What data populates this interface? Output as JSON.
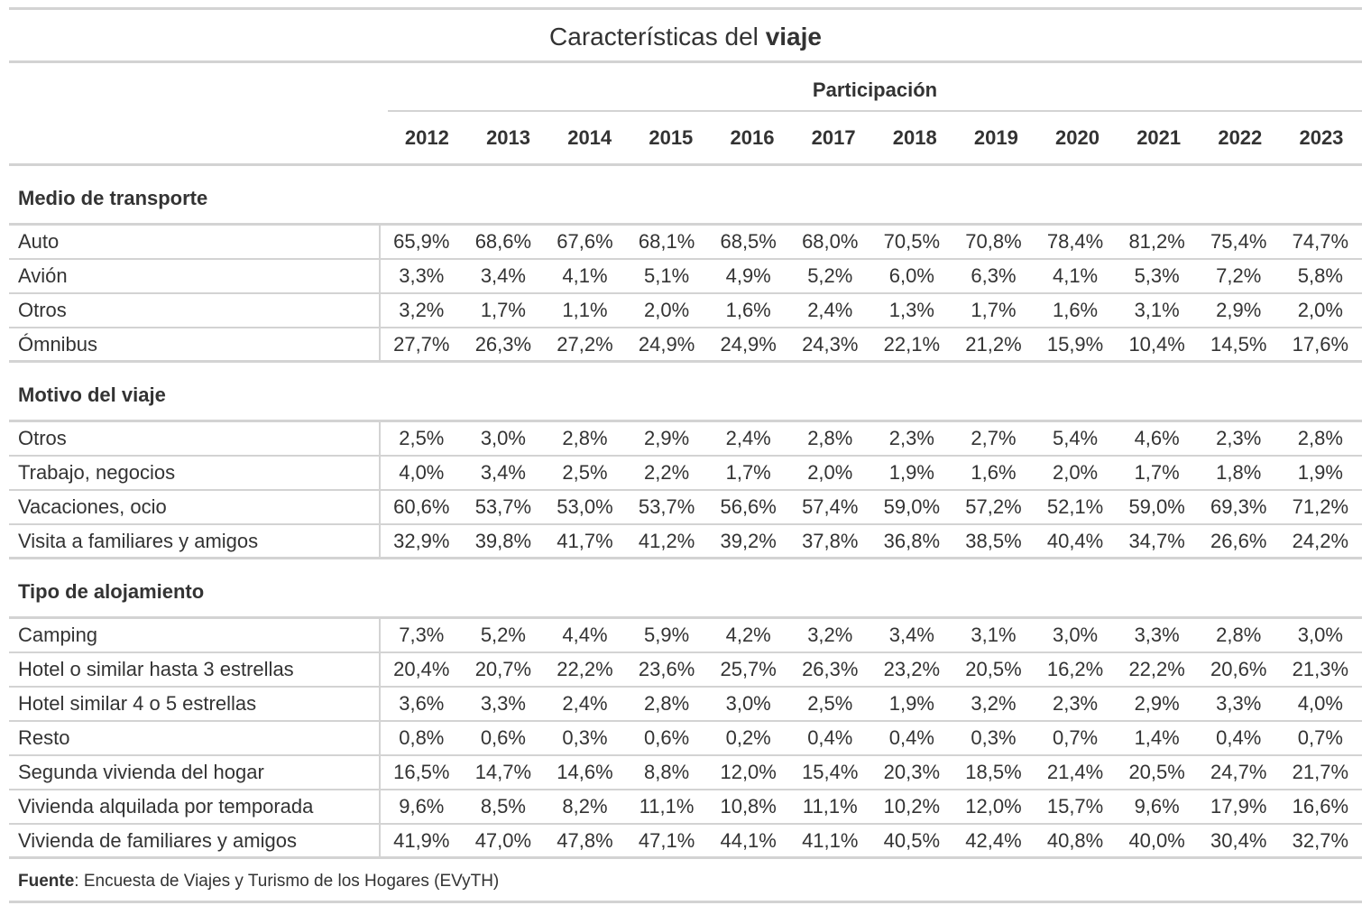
{
  "title": {
    "normal": "Características del",
    "bold": "viaje"
  },
  "spanner": "Participación",
  "years": [
    "2012",
    "2013",
    "2014",
    "2015",
    "2016",
    "2017",
    "2018",
    "2019",
    "2020",
    "2021",
    "2022",
    "2023"
  ],
  "groups": [
    {
      "name": "Medio de transporte",
      "rows": [
        {
          "label": "Auto",
          "values": [
            "65,9%",
            "68,6%",
            "67,6%",
            "68,1%",
            "68,5%",
            "68,0%",
            "70,5%",
            "70,8%",
            "78,4%",
            "81,2%",
            "75,4%",
            "74,7%"
          ]
        },
        {
          "label": "Avión",
          "values": [
            "3,3%",
            "3,4%",
            "4,1%",
            "5,1%",
            "4,9%",
            "5,2%",
            "6,0%",
            "6,3%",
            "4,1%",
            "5,3%",
            "7,2%",
            "5,8%"
          ]
        },
        {
          "label": "Otros",
          "values": [
            "3,2%",
            "1,7%",
            "1,1%",
            "2,0%",
            "1,6%",
            "2,4%",
            "1,3%",
            "1,7%",
            "1,6%",
            "3,1%",
            "2,9%",
            "2,0%"
          ]
        },
        {
          "label": "Ómnibus",
          "values": [
            "27,7%",
            "26,3%",
            "27,2%",
            "24,9%",
            "24,9%",
            "24,3%",
            "22,1%",
            "21,2%",
            "15,9%",
            "10,4%",
            "14,5%",
            "17,6%"
          ]
        }
      ]
    },
    {
      "name": "Motivo del viaje",
      "rows": [
        {
          "label": "Otros",
          "values": [
            "2,5%",
            "3,0%",
            "2,8%",
            "2,9%",
            "2,4%",
            "2,8%",
            "2,3%",
            "2,7%",
            "5,4%",
            "4,6%",
            "2,3%",
            "2,8%"
          ]
        },
        {
          "label": "Trabajo, negocios",
          "values": [
            "4,0%",
            "3,4%",
            "2,5%",
            "2,2%",
            "1,7%",
            "2,0%",
            "1,9%",
            "1,6%",
            "2,0%",
            "1,7%",
            "1,8%",
            "1,9%"
          ]
        },
        {
          "label": "Vacaciones, ocio",
          "values": [
            "60,6%",
            "53,7%",
            "53,0%",
            "53,7%",
            "56,6%",
            "57,4%",
            "59,0%",
            "57,2%",
            "52,1%",
            "59,0%",
            "69,3%",
            "71,2%"
          ]
        },
        {
          "label": "Visita a familiares y amigos",
          "values": [
            "32,9%",
            "39,8%",
            "41,7%",
            "41,2%",
            "39,2%",
            "37,8%",
            "36,8%",
            "38,5%",
            "40,4%",
            "34,7%",
            "26,6%",
            "24,2%"
          ]
        }
      ]
    },
    {
      "name": "Tipo de alojamiento",
      "rows": [
        {
          "label": "Camping",
          "values": [
            "7,3%",
            "5,2%",
            "4,4%",
            "5,9%",
            "4,2%",
            "3,2%",
            "3,4%",
            "3,1%",
            "3,0%",
            "3,3%",
            "2,8%",
            "3,0%"
          ]
        },
        {
          "label": "Hotel o similar hasta 3 estrellas",
          "values": [
            "20,4%",
            "20,7%",
            "22,2%",
            "23,6%",
            "25,7%",
            "26,3%",
            "23,2%",
            "20,5%",
            "16,2%",
            "22,2%",
            "20,6%",
            "21,3%"
          ]
        },
        {
          "label": "Hotel similar 4 o 5 estrellas",
          "values": [
            "3,6%",
            "3,3%",
            "2,4%",
            "2,8%",
            "3,0%",
            "2,5%",
            "1,9%",
            "3,2%",
            "2,3%",
            "2,9%",
            "3,3%",
            "4,0%"
          ]
        },
        {
          "label": "Resto",
          "values": [
            "0,8%",
            "0,6%",
            "0,3%",
            "0,6%",
            "0,2%",
            "0,4%",
            "0,4%",
            "0,3%",
            "0,7%",
            "1,4%",
            "0,4%",
            "0,7%"
          ]
        },
        {
          "label": "Segunda vivienda del hogar",
          "values": [
            "16,5%",
            "14,7%",
            "14,6%",
            "8,8%",
            "12,0%",
            "15,4%",
            "20,3%",
            "18,5%",
            "21,4%",
            "20,5%",
            "24,7%",
            "21,7%"
          ]
        },
        {
          "label": "Vivienda alquilada por temporada",
          "values": [
            "9,6%",
            "8,5%",
            "8,2%",
            "11,1%",
            "10,8%",
            "11,1%",
            "10,2%",
            "12,0%",
            "15,7%",
            "9,6%",
            "17,9%",
            "16,6%"
          ]
        },
        {
          "label": "Vivienda de familiares y amigos",
          "values": [
            "41,9%",
            "47,0%",
            "47,8%",
            "47,1%",
            "44,1%",
            "41,1%",
            "40,5%",
            "42,4%",
            "40,8%",
            "40,0%",
            "30,4%",
            "32,7%"
          ]
        }
      ]
    }
  ],
  "source": {
    "label": "Fuente",
    "text": ": Encuesta de Viajes y Turismo de los Hogares (EVyTH)"
  }
}
